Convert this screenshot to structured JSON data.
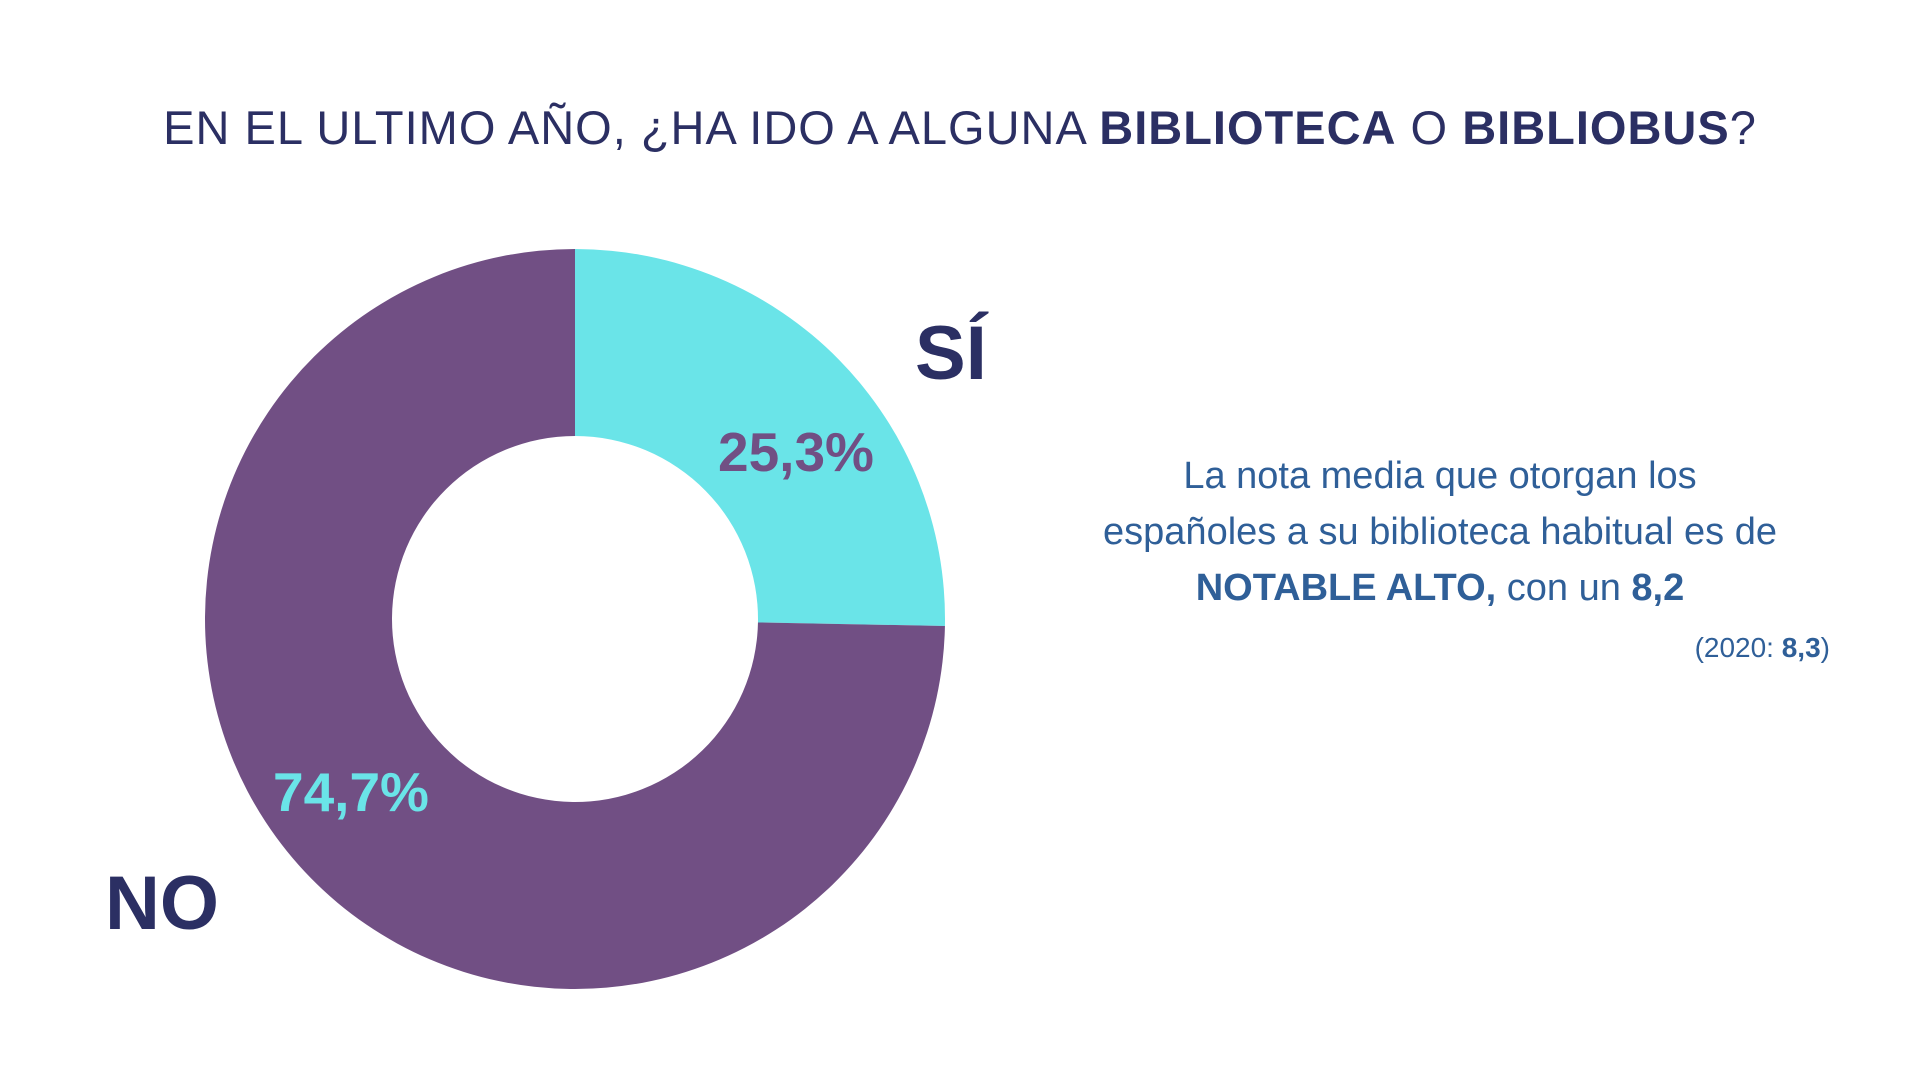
{
  "title": {
    "part1": "EN EL ULTIMO AÑO, ¿HA IDO A ALGUNA ",
    "bold1": "BIBLIOTECA",
    "part2": " O ",
    "bold2": "BIBLIOBUS",
    "part3": "?"
  },
  "chart_data": {
    "type": "pie",
    "donut": true,
    "title": "EN EL ULTIMO AÑO, ¿HA IDO A ALGUNA BIBLIOTECA O BIBLIOBUS?",
    "categories": [
      "SÍ",
      "NO"
    ],
    "values": [
      25.3,
      74.7
    ],
    "value_labels": [
      "25,3%",
      "74,7%"
    ],
    "colors": [
      "#6ae4e8",
      "#714f84"
    ],
    "label_colors": [
      "#714f84",
      "#6ae4e8"
    ]
  },
  "note": {
    "line1": "La nota media que otorgan los",
    "line2": "españoles a su biblioteca habitual es de",
    "bold": "NOTABLE ALTO,",
    "mid": " con un ",
    "score": "8,2",
    "prev_prefix": "(2020: ",
    "prev_value": "8,3",
    "prev_suffix": ")"
  },
  "colors": {
    "title": "#2b2f63",
    "note": "#2f5f98",
    "si": "#6ae4e8",
    "no": "#714f84"
  }
}
